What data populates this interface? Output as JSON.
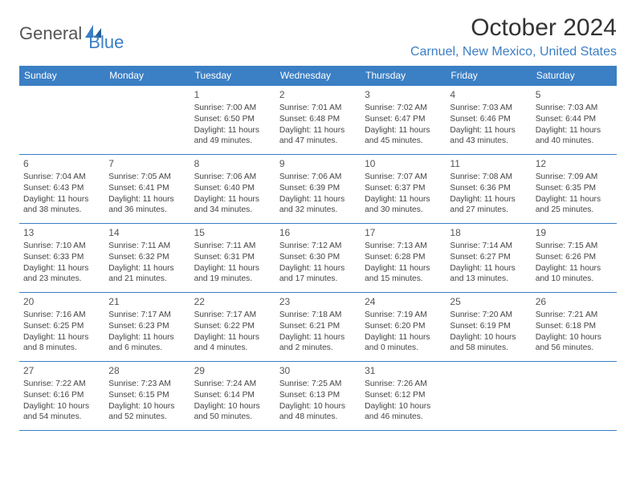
{
  "logo": {
    "part1": "General",
    "part2": "Blue"
  },
  "title": "October 2024",
  "location": "Carnuel, New Mexico, United States",
  "accent_color": "#3b7fc4",
  "weekdays": [
    "Sunday",
    "Monday",
    "Tuesday",
    "Wednesday",
    "Thursday",
    "Friday",
    "Saturday"
  ],
  "weeks": [
    [
      null,
      null,
      {
        "n": "1",
        "sunrise": "7:00 AM",
        "sunset": "6:50 PM",
        "day": "11 hours and 49 minutes."
      },
      {
        "n": "2",
        "sunrise": "7:01 AM",
        "sunset": "6:48 PM",
        "day": "11 hours and 47 minutes."
      },
      {
        "n": "3",
        "sunrise": "7:02 AM",
        "sunset": "6:47 PM",
        "day": "11 hours and 45 minutes."
      },
      {
        "n": "4",
        "sunrise": "7:03 AM",
        "sunset": "6:46 PM",
        "day": "11 hours and 43 minutes."
      },
      {
        "n": "5",
        "sunrise": "7:03 AM",
        "sunset": "6:44 PM",
        "day": "11 hours and 40 minutes."
      }
    ],
    [
      {
        "n": "6",
        "sunrise": "7:04 AM",
        "sunset": "6:43 PM",
        "day": "11 hours and 38 minutes."
      },
      {
        "n": "7",
        "sunrise": "7:05 AM",
        "sunset": "6:41 PM",
        "day": "11 hours and 36 minutes."
      },
      {
        "n": "8",
        "sunrise": "7:06 AM",
        "sunset": "6:40 PM",
        "day": "11 hours and 34 minutes."
      },
      {
        "n": "9",
        "sunrise": "7:06 AM",
        "sunset": "6:39 PM",
        "day": "11 hours and 32 minutes."
      },
      {
        "n": "10",
        "sunrise": "7:07 AM",
        "sunset": "6:37 PM",
        "day": "11 hours and 30 minutes."
      },
      {
        "n": "11",
        "sunrise": "7:08 AM",
        "sunset": "6:36 PM",
        "day": "11 hours and 27 minutes."
      },
      {
        "n": "12",
        "sunrise": "7:09 AM",
        "sunset": "6:35 PM",
        "day": "11 hours and 25 minutes."
      }
    ],
    [
      {
        "n": "13",
        "sunrise": "7:10 AM",
        "sunset": "6:33 PM",
        "day": "11 hours and 23 minutes."
      },
      {
        "n": "14",
        "sunrise": "7:11 AM",
        "sunset": "6:32 PM",
        "day": "11 hours and 21 minutes."
      },
      {
        "n": "15",
        "sunrise": "7:11 AM",
        "sunset": "6:31 PM",
        "day": "11 hours and 19 minutes."
      },
      {
        "n": "16",
        "sunrise": "7:12 AM",
        "sunset": "6:30 PM",
        "day": "11 hours and 17 minutes."
      },
      {
        "n": "17",
        "sunrise": "7:13 AM",
        "sunset": "6:28 PM",
        "day": "11 hours and 15 minutes."
      },
      {
        "n": "18",
        "sunrise": "7:14 AM",
        "sunset": "6:27 PM",
        "day": "11 hours and 13 minutes."
      },
      {
        "n": "19",
        "sunrise": "7:15 AM",
        "sunset": "6:26 PM",
        "day": "11 hours and 10 minutes."
      }
    ],
    [
      {
        "n": "20",
        "sunrise": "7:16 AM",
        "sunset": "6:25 PM",
        "day": "11 hours and 8 minutes."
      },
      {
        "n": "21",
        "sunrise": "7:17 AM",
        "sunset": "6:23 PM",
        "day": "11 hours and 6 minutes."
      },
      {
        "n": "22",
        "sunrise": "7:17 AM",
        "sunset": "6:22 PM",
        "day": "11 hours and 4 minutes."
      },
      {
        "n": "23",
        "sunrise": "7:18 AM",
        "sunset": "6:21 PM",
        "day": "11 hours and 2 minutes."
      },
      {
        "n": "24",
        "sunrise": "7:19 AM",
        "sunset": "6:20 PM",
        "day": "11 hours and 0 minutes."
      },
      {
        "n": "25",
        "sunrise": "7:20 AM",
        "sunset": "6:19 PM",
        "day": "10 hours and 58 minutes."
      },
      {
        "n": "26",
        "sunrise": "7:21 AM",
        "sunset": "6:18 PM",
        "day": "10 hours and 56 minutes."
      }
    ],
    [
      {
        "n": "27",
        "sunrise": "7:22 AM",
        "sunset": "6:16 PM",
        "day": "10 hours and 54 minutes."
      },
      {
        "n": "28",
        "sunrise": "7:23 AM",
        "sunset": "6:15 PM",
        "day": "10 hours and 52 minutes."
      },
      {
        "n": "29",
        "sunrise": "7:24 AM",
        "sunset": "6:14 PM",
        "day": "10 hours and 50 minutes."
      },
      {
        "n": "30",
        "sunrise": "7:25 AM",
        "sunset": "6:13 PM",
        "day": "10 hours and 48 minutes."
      },
      {
        "n": "31",
        "sunrise": "7:26 AM",
        "sunset": "6:12 PM",
        "day": "10 hours and 46 minutes."
      },
      null,
      null
    ]
  ]
}
